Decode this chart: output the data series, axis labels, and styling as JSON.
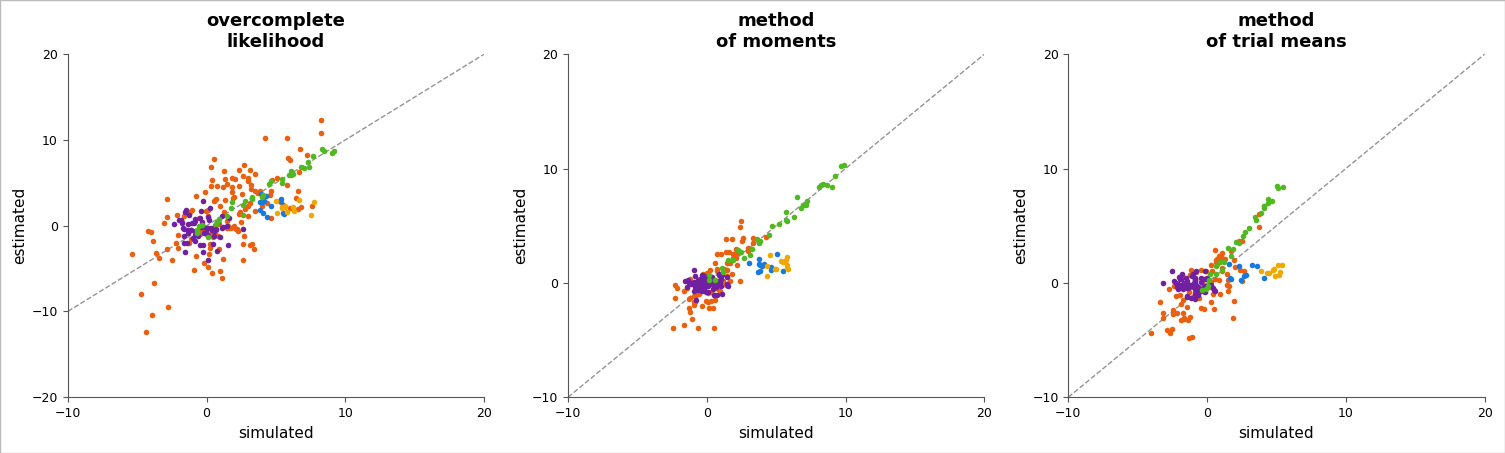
{
  "panels": [
    {
      "title": "overcomplete\nlikelihood",
      "xlim": [
        -10,
        20
      ],
      "ylim": [
        -20,
        20
      ],
      "xticks": [
        -10,
        0,
        10,
        20
      ],
      "yticks": [
        -20,
        -10,
        0,
        10,
        20
      ]
    },
    {
      "title": "method\nof moments",
      "xlim": [
        -10,
        20
      ],
      "ylim": [
        -10,
        20
      ],
      "xticks": [
        -10,
        0,
        10,
        20
      ],
      "yticks": [
        -10,
        0,
        10,
        20
      ]
    },
    {
      "title": "method\nof trial means",
      "xlim": [
        -10,
        20
      ],
      "ylim": [
        -10,
        20
      ],
      "xticks": [
        -10,
        0,
        10,
        20
      ],
      "yticks": [
        -10,
        0,
        10,
        20
      ]
    }
  ],
  "colors": {
    "orange": "#E86010",
    "purple": "#7020A0",
    "green": "#50B820",
    "blue": "#1878E0",
    "gold": "#F0A800"
  },
  "point_size": 16,
  "dashed_line_color": "#808080",
  "xlabel": "simulated",
  "ylabel": "estimated",
  "background_color": "#ffffff",
  "seed": 7,
  "figsize": [
    15.05,
    4.53
  ],
  "dpi": 100
}
